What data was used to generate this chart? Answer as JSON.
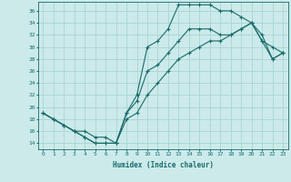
{
  "xlabel": "Humidex (Indice chaleur)",
  "xlim": [
    -0.5,
    23.5
  ],
  "ylim": [
    13,
    37.5
  ],
  "xticks": [
    0,
    1,
    2,
    3,
    4,
    5,
    6,
    7,
    8,
    9,
    10,
    11,
    12,
    13,
    14,
    15,
    16,
    17,
    18,
    19,
    20,
    21,
    22,
    23
  ],
  "yticks": [
    14,
    16,
    18,
    20,
    22,
    24,
    26,
    28,
    30,
    32,
    34,
    36
  ],
  "bg_color": "#cceaea",
  "grid_color": "#aad4d4",
  "line_color": "#1a6b6b",
  "line1_x": [
    0,
    1,
    2,
    3,
    4,
    5,
    6,
    7,
    8,
    9,
    10,
    11,
    12,
    13,
    14,
    15,
    16,
    17,
    18,
    19,
    20,
    21,
    22,
    23
  ],
  "line1_y": [
    19,
    18,
    17,
    16,
    16,
    15,
    15,
    14,
    19,
    22,
    30,
    31,
    33,
    37,
    37,
    37,
    37,
    36,
    36,
    35,
    34,
    31,
    30,
    29
  ],
  "line2_x": [
    0,
    1,
    2,
    3,
    4,
    5,
    6,
    7,
    8,
    9,
    10,
    11,
    12,
    13,
    14,
    15,
    16,
    17,
    18,
    19,
    20,
    21,
    22,
    23
  ],
  "line2_y": [
    19,
    18,
    17,
    16,
    15,
    14,
    14,
    14,
    19,
    21,
    26,
    27,
    29,
    31,
    33,
    33,
    33,
    32,
    32,
    33,
    34,
    31,
    28,
    29
  ],
  "line3_x": [
    0,
    1,
    2,
    3,
    4,
    5,
    6,
    7,
    8,
    9,
    10,
    11,
    12,
    13,
    14,
    15,
    16,
    17,
    18,
    19,
    20,
    21,
    22,
    23
  ],
  "line3_y": [
    19,
    18,
    17,
    16,
    15,
    14,
    14,
    14,
    18,
    19,
    22,
    24,
    26,
    28,
    29,
    30,
    31,
    31,
    32,
    33,
    34,
    32,
    28,
    29
  ]
}
